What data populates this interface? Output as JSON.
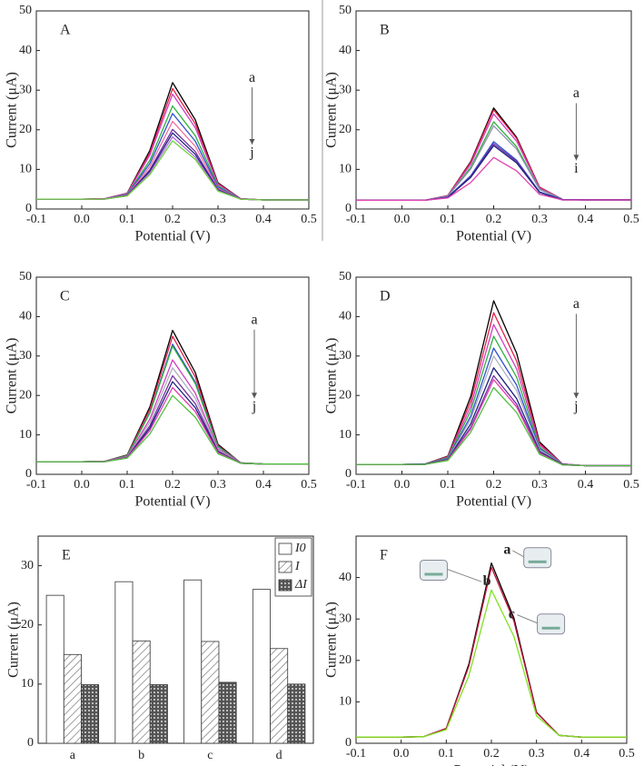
{
  "chart_data": [
    {
      "type": "line",
      "label": "A",
      "xlabel": "Potential (V)",
      "ylabel": "Current (μA)",
      "xlim": [
        -0.1,
        0.5
      ],
      "ylim": [
        0,
        50
      ],
      "xticks": [
        -0.1,
        {
          "value": 0,
          "label": "0.0"
        },
        0.1,
        0.2,
        0.3,
        0.4,
        0.5
      ],
      "yticks": [
        0,
        10,
        20,
        30,
        40,
        50
      ],
      "annotations": [
        "a",
        "j"
      ],
      "x": [
        -0.1,
        -0.05,
        0,
        0.05,
        0.1,
        0.15,
        0.2,
        0.25,
        0.3,
        0.35,
        0.4,
        0.45,
        0.5
      ],
      "series": [
        {
          "color": "#000000",
          "values": [
            2.5,
            2.5,
            2.5,
            2.6,
            4.0,
            14.8,
            31.9,
            22.5,
            6.6,
            2.6,
            2.3,
            2.3,
            2.3
          ]
        },
        {
          "color": "#e0204a",
          "values": [
            2.5,
            2.5,
            2.5,
            2.6,
            3.9,
            14.2,
            30.4,
            21.5,
            6.4,
            2.6,
            2.3,
            2.3,
            2.3
          ]
        },
        {
          "color": "#d040c0",
          "values": [
            2.5,
            2.5,
            2.5,
            2.6,
            3.9,
            13.6,
            29.0,
            20.5,
            6.2,
            2.6,
            2.3,
            2.3,
            2.3
          ]
        },
        {
          "color": "#30b040",
          "values": [
            2.5,
            2.5,
            2.5,
            2.5,
            3.7,
            12.3,
            26.0,
            18.5,
            5.8,
            2.5,
            2.3,
            2.3,
            2.3
          ]
        },
        {
          "color": "#3050d0",
          "values": [
            2.5,
            2.5,
            2.5,
            2.5,
            3.6,
            11.5,
            24.1,
            17.1,
            5.5,
            2.5,
            2.3,
            2.3,
            2.3
          ]
        },
        {
          "color": "#f070a0",
          "values": [
            2.5,
            2.5,
            2.5,
            2.5,
            3.5,
            10.7,
            22.1,
            15.8,
            5.2,
            2.5,
            2.3,
            2.3,
            2.3
          ]
        },
        {
          "color": "#7030a0",
          "values": [
            2.5,
            2.5,
            2.5,
            2.5,
            3.4,
            9.9,
            20.1,
            14.5,
            4.9,
            2.5,
            2.3,
            2.3,
            2.3
          ]
        },
        {
          "color": "#202080",
          "values": [
            2.5,
            2.5,
            2.5,
            2.5,
            3.4,
            9.5,
            19.2,
            13.8,
            4.8,
            2.5,
            2.3,
            2.3,
            2.3
          ]
        },
        {
          "color": "#b070e0",
          "values": [
            2.5,
            2.5,
            2.5,
            2.5,
            3.3,
            9.1,
            18.2,
            13.1,
            4.6,
            2.5,
            2.3,
            2.3,
            2.3
          ]
        },
        {
          "color": "#70d040",
          "values": [
            2.5,
            2.5,
            2.5,
            2.5,
            3.3,
            8.7,
            17.2,
            12.5,
            4.5,
            2.5,
            2.3,
            2.3,
            2.3
          ]
        }
      ]
    },
    {
      "type": "line",
      "label": "B",
      "xlabel": "Potential (V)",
      "ylabel": "Current (μA)",
      "xlim": [
        -0.1,
        0.5
      ],
      "ylim": [
        0,
        50
      ],
      "xticks": [
        -0.1,
        {
          "value": 0,
          "label": "0.0"
        },
        0.1,
        0.2,
        0.3,
        0.4,
        0.5
      ],
      "yticks": [
        0,
        10,
        20,
        30,
        40,
        50
      ],
      "annotations": [
        "a",
        "i"
      ],
      "x": [
        -0.1,
        -0.05,
        0,
        0.05,
        0.1,
        0.15,
        0.2,
        0.25,
        0.3,
        0.35,
        0.4,
        0.45,
        0.5
      ],
      "series": [
        {
          "color": "#000000",
          "values": [
            2.2,
            2.2,
            2.2,
            2.2,
            3.4,
            12.0,
            25.5,
            18.1,
            5.5,
            2.4,
            2.3,
            2.3,
            2.3
          ]
        },
        {
          "color": "#e0204a",
          "values": [
            2.2,
            2.2,
            2.2,
            2.2,
            3.4,
            11.8,
            25.0,
            17.8,
            5.5,
            2.4,
            2.3,
            2.3,
            2.3
          ]
        },
        {
          "color": "#d040c0",
          "values": [
            2.2,
            2.2,
            2.2,
            2.2,
            3.3,
            11.3,
            24.0,
            17.1,
            5.3,
            2.4,
            2.3,
            2.3,
            2.3
          ]
        },
        {
          "color": "#30b040",
          "values": [
            2.2,
            2.2,
            2.2,
            2.2,
            3.2,
            10.5,
            22.0,
            15.7,
            5.0,
            2.4,
            2.3,
            2.3,
            2.3
          ]
        },
        {
          "color": "#9090b0",
          "values": [
            2.2,
            2.2,
            2.2,
            2.2,
            3.2,
            10.1,
            21.0,
            15.1,
            4.9,
            2.4,
            2.3,
            2.3,
            2.3
          ]
        },
        {
          "color": "#3050d0",
          "values": [
            2.2,
            2.2,
            2.2,
            2.2,
            3.0,
            8.4,
            17.0,
            12.3,
            4.3,
            2.4,
            2.3,
            2.3,
            2.3
          ]
        },
        {
          "color": "#7030a0",
          "values": [
            2.2,
            2.2,
            2.2,
            2.2,
            2.9,
            8.2,
            16.5,
            12.0,
            4.2,
            2.3,
            2.3,
            2.3,
            2.3
          ]
        },
        {
          "color": "#202080",
          "values": [
            2.2,
            2.2,
            2.2,
            2.2,
            2.9,
            8.0,
            16.0,
            11.6,
            4.2,
            2.3,
            2.3,
            2.3,
            2.3
          ]
        },
        {
          "color": "#e040b0",
          "values": [
            2.2,
            2.2,
            2.2,
            2.2,
            2.8,
            6.7,
            13.0,
            9.6,
            3.7,
            2.3,
            2.3,
            2.3,
            2.3
          ]
        }
      ]
    },
    {
      "type": "line",
      "label": "C",
      "xlabel": "Potential (V)",
      "ylabel": "Current (μA)",
      "xlim": [
        -0.1,
        0.5
      ],
      "ylim": [
        0,
        50
      ],
      "xticks": [
        -0.1,
        {
          "value": 0,
          "label": "0.0"
        },
        0.1,
        0.2,
        0.3,
        0.4,
        0.5
      ],
      "yticks": [
        0,
        10,
        20,
        30,
        40,
        50
      ],
      "annotations": [
        "a",
        "j"
      ],
      "x": [
        -0.1,
        -0.05,
        0,
        0.05,
        0.1,
        0.15,
        0.2,
        0.25,
        0.3,
        0.35,
        0.4,
        0.45,
        0.5
      ],
      "series": [
        {
          "color": "#000000",
          "values": [
            3.2,
            3.2,
            3.2,
            3.3,
            4.9,
            17.1,
            36.5,
            25.8,
            7.6,
            2.9,
            2.6,
            2.6,
            2.6
          ]
        },
        {
          "color": "#e0204a",
          "values": [
            3.2,
            3.2,
            3.2,
            3.3,
            4.8,
            16.5,
            35.0,
            24.7,
            7.3,
            2.9,
            2.6,
            2.6,
            2.6
          ]
        },
        {
          "color": "#3050d0",
          "values": [
            3.2,
            3.2,
            3.2,
            3.3,
            4.7,
            15.7,
            33.0,
            23.4,
            7.1,
            2.9,
            2.6,
            2.6,
            2.6
          ]
        },
        {
          "color": "#30b040",
          "values": [
            3.2,
            3.2,
            3.2,
            3.3,
            4.7,
            15.5,
            32.5,
            23.0,
            7.0,
            2.9,
            2.6,
            2.6,
            2.6
          ]
        },
        {
          "color": "#d040c0",
          "values": [
            3.2,
            3.2,
            3.2,
            3.3,
            4.5,
            14.0,
            29.0,
            20.6,
            6.5,
            2.9,
            2.6,
            2.6,
            2.6
          ]
        },
        {
          "color": "#b0b0c0",
          "values": [
            3.2,
            3.2,
            3.2,
            3.2,
            4.4,
            13.2,
            27.0,
            19.3,
            6.2,
            2.8,
            2.6,
            2.6,
            2.6
          ]
        },
        {
          "color": "#7030a0",
          "values": [
            3.2,
            3.2,
            3.2,
            3.2,
            4.3,
            12.3,
            25.0,
            17.9,
            5.9,
            2.8,
            2.6,
            2.6,
            2.6
          ]
        },
        {
          "color": "#202080",
          "values": [
            3.2,
            3.2,
            3.2,
            3.2,
            4.2,
            11.7,
            23.5,
            16.9,
            5.7,
            2.8,
            2.6,
            2.6,
            2.6
          ]
        },
        {
          "color": "#e040b0",
          "values": [
            3.2,
            3.2,
            3.2,
            3.2,
            4.2,
            11.1,
            22.0,
            15.9,
            5.5,
            2.8,
            2.6,
            2.6,
            2.6
          ]
        },
        {
          "color": "#50c040",
          "values": [
            3.2,
            3.2,
            3.2,
            3.2,
            4.1,
            10.2,
            20.0,
            14.5,
            5.2,
            2.8,
            2.6,
            2.6,
            2.6
          ]
        }
      ]
    },
    {
      "type": "line",
      "label": "D",
      "xlabel": "Potential (V)",
      "ylabel": "Current (μA)",
      "xlim": [
        -0.1,
        0.5
      ],
      "ylim": [
        0,
        50
      ],
      "xticks": [
        -0.1,
        {
          "value": 0,
          "label": "0.0"
        },
        0.1,
        0.2,
        0.3,
        0.4,
        0.5
      ],
      "yticks": [
        0,
        10,
        20,
        30,
        40,
        50
      ],
      "annotations": [
        "a",
        "j"
      ],
      "x": [
        -0.1,
        -0.05,
        0,
        0.05,
        0.1,
        0.15,
        0.2,
        0.25,
        0.3,
        0.35,
        0.4,
        0.45,
        0.5
      ],
      "series": [
        {
          "color": "#000000",
          "values": [
            2.5,
            2.5,
            2.5,
            2.6,
            4.6,
            19.8,
            44.0,
            30.7,
            8.2,
            2.6,
            2.2,
            2.2,
            2.2
          ]
        },
        {
          "color": "#e0204a",
          "values": [
            2.5,
            2.5,
            2.5,
            2.6,
            4.5,
            18.6,
            41.0,
            28.7,
            7.8,
            2.6,
            2.2,
            2.2,
            2.2
          ]
        },
        {
          "color": "#d040c0",
          "values": [
            2.5,
            2.5,
            2.5,
            2.6,
            4.3,
            17.3,
            38.0,
            26.7,
            7.4,
            2.6,
            2.2,
            2.2,
            2.2
          ]
        },
        {
          "color": "#30b040",
          "values": [
            2.5,
            2.5,
            2.5,
            2.6,
            4.2,
            16.1,
            35.0,
            24.6,
            6.9,
            2.5,
            2.2,
            2.2,
            2.2
          ]
        },
        {
          "color": "#3050d0",
          "values": [
            2.5,
            2.5,
            2.5,
            2.6,
            4.0,
            14.8,
            32.0,
            22.6,
            6.5,
            2.5,
            2.2,
            2.2,
            2.2
          ]
        },
        {
          "color": "#b0b0c0",
          "values": [
            2.5,
            2.5,
            2.5,
            2.6,
            3.9,
            14.0,
            30.0,
            21.2,
            6.2,
            2.5,
            2.2,
            2.2,
            2.2
          ]
        },
        {
          "color": "#202080",
          "values": [
            2.5,
            2.5,
            2.5,
            2.6,
            3.8,
            12.8,
            27.0,
            19.2,
            5.8,
            2.5,
            2.2,
            2.2,
            2.2
          ]
        },
        {
          "color": "#7030a0",
          "values": [
            2.5,
            2.5,
            2.5,
            2.5,
            3.7,
            11.9,
            25.0,
            17.8,
            5.5,
            2.4,
            2.2,
            2.2,
            2.2
          ]
        },
        {
          "color": "#e040b0",
          "values": [
            2.5,
            2.5,
            2.5,
            2.5,
            3.6,
            11.5,
            24.0,
            17.1,
            5.4,
            2.4,
            2.2,
            2.2,
            2.2
          ]
        },
        {
          "color": "#50c040",
          "values": [
            2.5,
            2.5,
            2.5,
            2.5,
            3.5,
            10.7,
            22.0,
            15.7,
            5.1,
            2.4,
            2.2,
            2.2,
            2.2
          ]
        }
      ]
    },
    {
      "type": "bar",
      "label": "E",
      "ylabel": "Current (μA)",
      "ylim": [
        0,
        35
      ],
      "yticks": [
        0,
        10,
        20,
        30
      ],
      "categories": [
        "a",
        "b",
        "c",
        "d"
      ],
      "series": [
        {
          "name": "I0",
          "color": "#ffffff",
          "values": [
            25.0,
            27.3,
            27.6,
            26.0
          ]
        },
        {
          "name": "I",
          "color": "#777777",
          "values": [
            15.0,
            17.3,
            17.2,
            16.0
          ]
        },
        {
          "name": "ΔI",
          "color": "#555555",
          "values": [
            9.9,
            9.9,
            10.3,
            10.0
          ]
        }
      ]
    },
    {
      "type": "line",
      "label": "F",
      "xlabel": "Potential (V)",
      "ylabel": "Current (μA)",
      "xlim": [
        -0.1,
        0.5
      ],
      "ylim": [
        0,
        50
      ],
      "xticks": [
        -0.1,
        {
          "value": 0,
          "label": "0.0"
        },
        0.1,
        0.2,
        0.3,
        0.4,
        0.5
      ],
      "yticks": [
        0,
        10,
        20,
        30,
        40
      ],
      "annotations": [
        "a",
        "b",
        "c"
      ],
      "x": [
        -0.1,
        -0.05,
        0,
        0.05,
        0.1,
        0.15,
        0.2,
        0.25,
        0.3,
        0.35,
        0.4,
        0.45,
        0.5
      ],
      "series": [
        {
          "color": "#000000",
          "values": [
            1.5,
            1.5,
            1.5,
            1.6,
            3.6,
            19.1,
            43.5,
            30.2,
            7.5,
            1.9,
            1.5,
            1.5,
            1.5
          ]
        },
        {
          "color": "#c0143c",
          "values": [
            1.5,
            1.5,
            1.5,
            1.6,
            3.6,
            18.6,
            42.5,
            29.5,
            7.4,
            1.9,
            1.5,
            1.5,
            1.5
          ]
        },
        {
          "color": "#80e020",
          "values": [
            1.5,
            1.5,
            1.5,
            1.6,
            3.3,
            16.3,
            37.0,
            25.8,
            6.6,
            1.9,
            1.5,
            1.5,
            1.5
          ]
        }
      ]
    }
  ]
}
